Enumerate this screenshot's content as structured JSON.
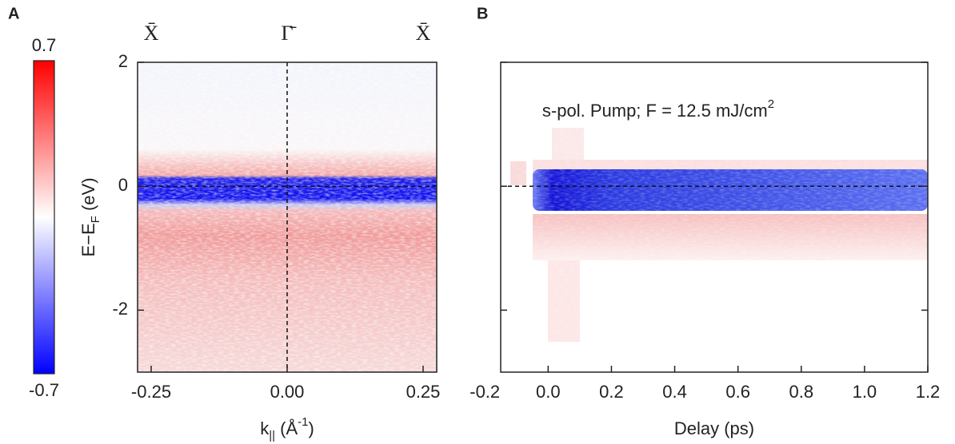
{
  "chart_data": [
    {
      "type": "heatmap",
      "panel_label": "A",
      "xlabel": [
        "k",
        "||",
        " (Å",
        "-1",
        ")"
      ],
      "ylabel": [
        "E−E",
        "F",
        " (eV)"
      ],
      "xlim": [
        -0.275,
        0.275
      ],
      "xticks": [
        {
          "value": -0.25,
          "label": "-0.25"
        },
        {
          "value": 0,
          "label": "0.00"
        },
        {
          "value": 0.25,
          "label": "0.25"
        }
      ],
      "ylim": [
        -3,
        2
      ],
      "yticks": [
        -2,
        0,
        2
      ],
      "ytick_labels": true,
      "symmetry_points": [
        {
          "value": -0.25,
          "label": "X̄"
        },
        {
          "value": 0,
          "label": "Γ̄"
        },
        {
          "value": 0.25,
          "label": "X̄"
        }
      ],
      "vlines": [
        0
      ],
      "hlines": [
        0
      ],
      "colorbar": {
        "max": 0.7,
        "min": -0.7,
        "colors": [
          "#0000ff",
          "#ffffff",
          "#ff0000"
        ]
      }
    },
    {
      "type": "heatmap",
      "panel_label": "B",
      "xlabel": [
        "Delay (ps)"
      ],
      "xlim": [
        -0.15,
        1.2
      ],
      "xticks": [
        -0.2,
        {
          "value": 0,
          "label": "0.0"
        },
        0.2,
        0.4,
        0.6,
        0.8,
        {
          "value": 1,
          "label": "1.0"
        },
        1.2
      ],
      "ylim": [
        -3,
        2
      ],
      "yticks": [
        -2,
        0,
        2
      ],
      "ytick_labels": false,
      "annotation": [
        "s-pol. Pump; F = 12.5 mJ/cm",
        "2"
      ],
      "hlines": [
        0
      ]
    }
  ]
}
